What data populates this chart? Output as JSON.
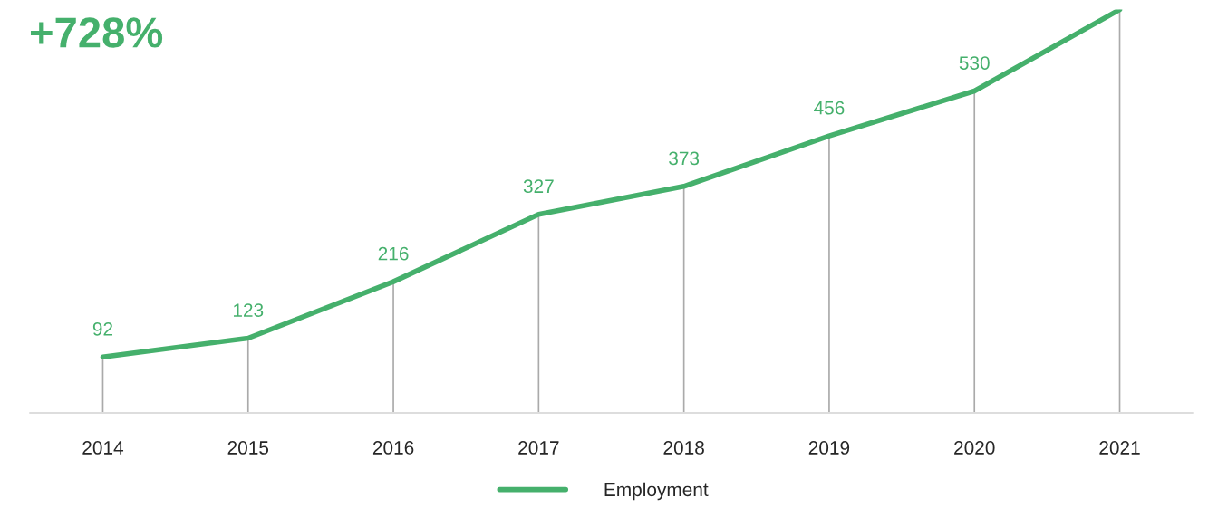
{
  "chart_data": {
    "type": "line",
    "title": "+728%",
    "categories": [
      "2014",
      "2015",
      "2016",
      "2017",
      "2018",
      "2019",
      "2020",
      "2021"
    ],
    "series": [
      {
        "name": "Employment",
        "color": "#45b06c",
        "values": [
          92,
          123,
          216,
          327,
          373,
          456,
          530,
          664
        ],
        "value_labels": [
          "92",
          "123",
          "216",
          "327",
          "373",
          "456",
          "530",
          null
        ]
      }
    ],
    "tick_labels": "x",
    "grid": "x",
    "legend": "bottom",
    "marker": "none",
    "line_style": "solid"
  }
}
